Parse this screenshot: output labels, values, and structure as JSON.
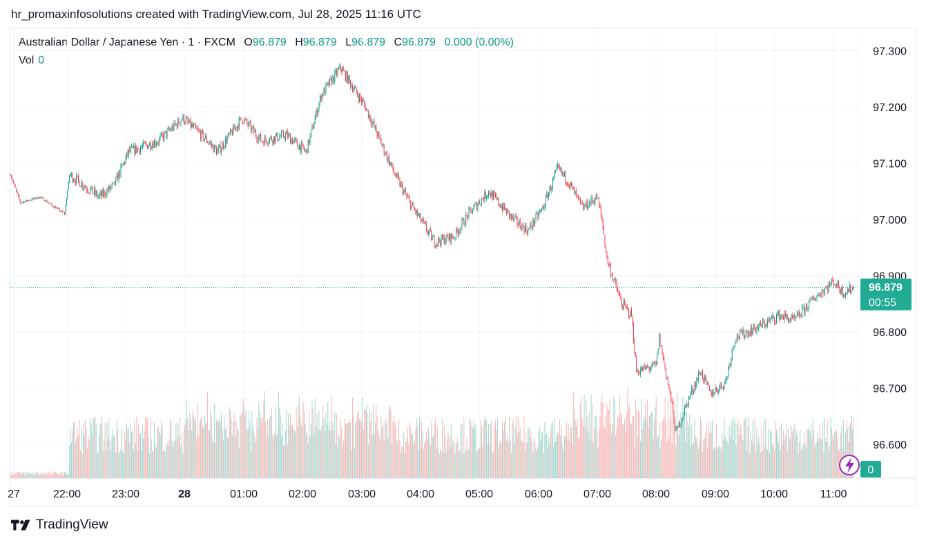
{
  "caption": "hr_promaxinfosolutions created with TradingView.com, Jul 28, 2025 11:16 UTC",
  "legend": {
    "symbol": "Australian Dollar / Japanese Yen · 1 · FXCM",
    "o_label": "O",
    "o": "96.879",
    "h_label": "H",
    "h": "96.879",
    "l_label": "L",
    "l": "96.879",
    "c_label": "C",
    "c": "96.879",
    "change": "0.000 (0.00%)",
    "vol_label": "Vol",
    "vol": "0"
  },
  "price_badge": {
    "price": "96.879",
    "countdown": "00:55"
  },
  "volume_badge": "0",
  "brand": "TradingView",
  "colors": {
    "up": "#089981",
    "down": "#f23645",
    "up_vol": "#8fcfc4",
    "down_vol": "#f7a9a9",
    "grid": "#f0f3fa",
    "accent": "#22ab94",
    "flash": "#9c27b0"
  },
  "icons": {
    "flash": "lightning-icon",
    "logo": "tradingview-logo-icon"
  },
  "chart_data": {
    "type": "candlestick",
    "symbol": "AUDJPY",
    "interval": "1 minute",
    "y_axis": {
      "ticks": [
        "96.600",
        "96.700",
        "96.800",
        "96.900",
        "97.000",
        "97.100",
        "97.200",
        "97.300"
      ],
      "range": [
        96.54,
        97.34
      ]
    },
    "x_axis": {
      "ticks": [
        "27",
        "22:00",
        "23:00",
        "28",
        "01:00",
        "02:00",
        "03:00",
        "04:00",
        "05:00",
        "06:00",
        "07:00",
        "08:00",
        "09:00",
        "10:00",
        "11:00"
      ]
    },
    "last_price": 96.879,
    "grid": true,
    "price_path_keypoints": [
      {
        "x": "21:00",
        "y": 97.08
      },
      {
        "x": "21:10",
        "y": 97.03
      },
      {
        "x": "21:30",
        "y": 97.04
      },
      {
        "x": "21:55",
        "y": 97.01
      },
      {
        "x": "22:00",
        "y": 97.08
      },
      {
        "x": "22:30",
        "y": 97.04
      },
      {
        "x": "22:45",
        "y": 97.06
      },
      {
        "x": "23:00",
        "y": 97.12
      },
      {
        "x": "23:30",
        "y": 97.14
      },
      {
        "x": "23:55",
        "y": 97.18
      },
      {
        "x": "00:20",
        "y": 97.14
      },
      {
        "x": "00:30",
        "y": 97.12
      },
      {
        "x": "00:55",
        "y": 97.18
      },
      {
        "x": "01:15",
        "y": 97.14
      },
      {
        "x": "01:40",
        "y": 97.15
      },
      {
        "x": "02:00",
        "y": 97.12
      },
      {
        "x": "02:15",
        "y": 97.22
      },
      {
        "x": "02:35",
        "y": 97.27
      },
      {
        "x": "03:00",
        "y": 97.2
      },
      {
        "x": "03:15",
        "y": 97.14
      },
      {
        "x": "03:30",
        "y": 97.08
      },
      {
        "x": "03:45",
        "y": 97.03
      },
      {
        "x": "04:10",
        "y": 96.96
      },
      {
        "x": "04:30",
        "y": 96.97
      },
      {
        "x": "04:45",
        "y": 97.01
      },
      {
        "x": "05:05",
        "y": 97.05
      },
      {
        "x": "05:30",
        "y": 97.0
      },
      {
        "x": "05:45",
        "y": 96.98
      },
      {
        "x": "06:00",
        "y": 97.02
      },
      {
        "x": "06:15",
        "y": 97.09
      },
      {
        "x": "06:25",
        "y": 97.07
      },
      {
        "x": "06:40",
        "y": 97.02
      },
      {
        "x": "06:55",
        "y": 97.04
      },
      {
        "x": "07:00",
        "y": 97.0
      },
      {
        "x": "07:05",
        "y": 96.93
      },
      {
        "x": "07:20",
        "y": 96.85
      },
      {
        "x": "07:30",
        "y": 96.83
      },
      {
        "x": "07:35",
        "y": 96.73
      },
      {
        "x": "07:55",
        "y": 96.74
      },
      {
        "x": "07:58",
        "y": 96.79
      },
      {
        "x": "08:10",
        "y": 96.68
      },
      {
        "x": "08:15",
        "y": 96.62
      },
      {
        "x": "08:30",
        "y": 96.69
      },
      {
        "x": "08:40",
        "y": 96.73
      },
      {
        "x": "08:50",
        "y": 96.69
      },
      {
        "x": "09:05",
        "y": 96.71
      },
      {
        "x": "09:15",
        "y": 96.79
      },
      {
        "x": "09:40",
        "y": 96.81
      },
      {
        "x": "10:00",
        "y": 96.83
      },
      {
        "x": "10:15",
        "y": 96.82
      },
      {
        "x": "10:35",
        "y": 96.86
      },
      {
        "x": "10:55",
        "y": 96.89
      },
      {
        "x": "11:05",
        "y": 96.87
      },
      {
        "x": "11:15",
        "y": 96.879
      }
    ]
  }
}
